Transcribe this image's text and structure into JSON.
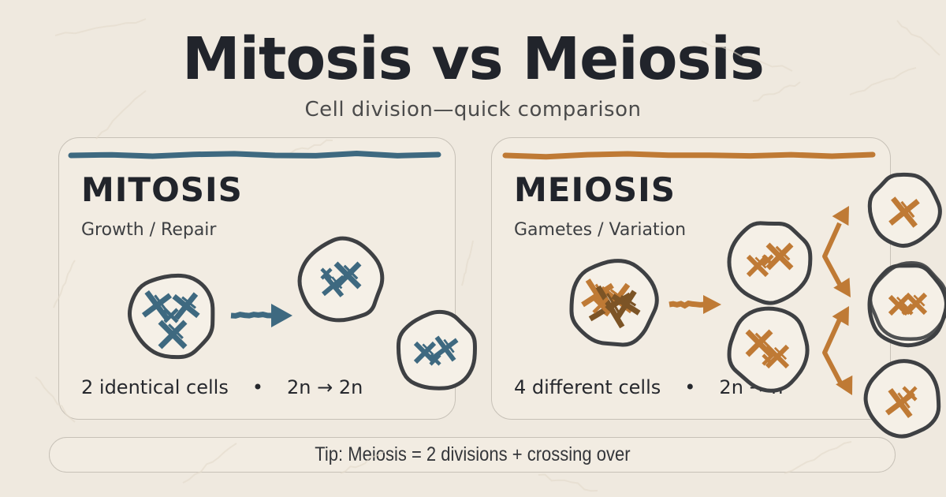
{
  "header": {
    "title": "Mitosis vs Meiosis",
    "subtitle": "Cell division—quick comparison"
  },
  "cards": {
    "mitosis": {
      "title": "MITOSIS",
      "subtitle": "Growth / Repair",
      "result": "2 identical cells",
      "separator": "•",
      "ploidy": "2n → 2n",
      "accent": "#3e6980"
    },
    "meiosis": {
      "title": "MEIOSIS",
      "subtitle": "Gametes / Variation",
      "result": "4 different cells",
      "separator": "•",
      "ploidy": "2n → n",
      "accent": "#bf7a35",
      "accent_dark": "#7c5426"
    }
  },
  "tip": {
    "text": "Tip: Meiosis = 2 divisions + crossing over"
  },
  "colors": {
    "background": "#efe9df",
    "card_background": "#f2ece2",
    "card_border": "#c7c1b7",
    "cell_fill": "#f5f0e7",
    "cell_outline": "#3e4043",
    "ink": "#21242b",
    "text": "#26282d",
    "muted": "#4b4b4b",
    "texture": "#e2dacb"
  }
}
